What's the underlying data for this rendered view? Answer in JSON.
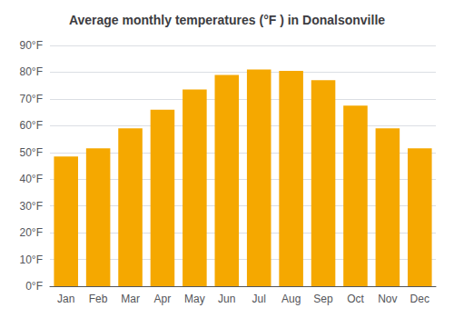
{
  "chart_data": {
    "type": "bar",
    "title": "Average monthly temperatures (°F ) in Donalsonville",
    "categories": [
      "Jan",
      "Feb",
      "Mar",
      "Apr",
      "May",
      "Jun",
      "Jul",
      "Aug",
      "Sep",
      "Oct",
      "Nov",
      "Dec"
    ],
    "values": [
      48.5,
      51.5,
      59.0,
      66.0,
      73.5,
      79.0,
      81.0,
      80.5,
      77.0,
      67.5,
      59.0,
      51.5
    ],
    "color": "#F5A800",
    "ylim": [
      0,
      90
    ],
    "yticks": [
      {
        "value": 0,
        "label": "0°F"
      },
      {
        "value": 10,
        "label": "10°F"
      },
      {
        "value": 20,
        "label": "20°F"
      },
      {
        "value": 30,
        "label": "30°F"
      },
      {
        "value": 40,
        "label": "40°F"
      },
      {
        "value": 50,
        "label": "50°F"
      },
      {
        "value": 60,
        "label": "60°F"
      },
      {
        "value": 70,
        "label": "70°F"
      },
      {
        "value": 80,
        "label": "80°F"
      },
      {
        "value": 90,
        "label": "90°F"
      }
    ],
    "grid": true
  }
}
